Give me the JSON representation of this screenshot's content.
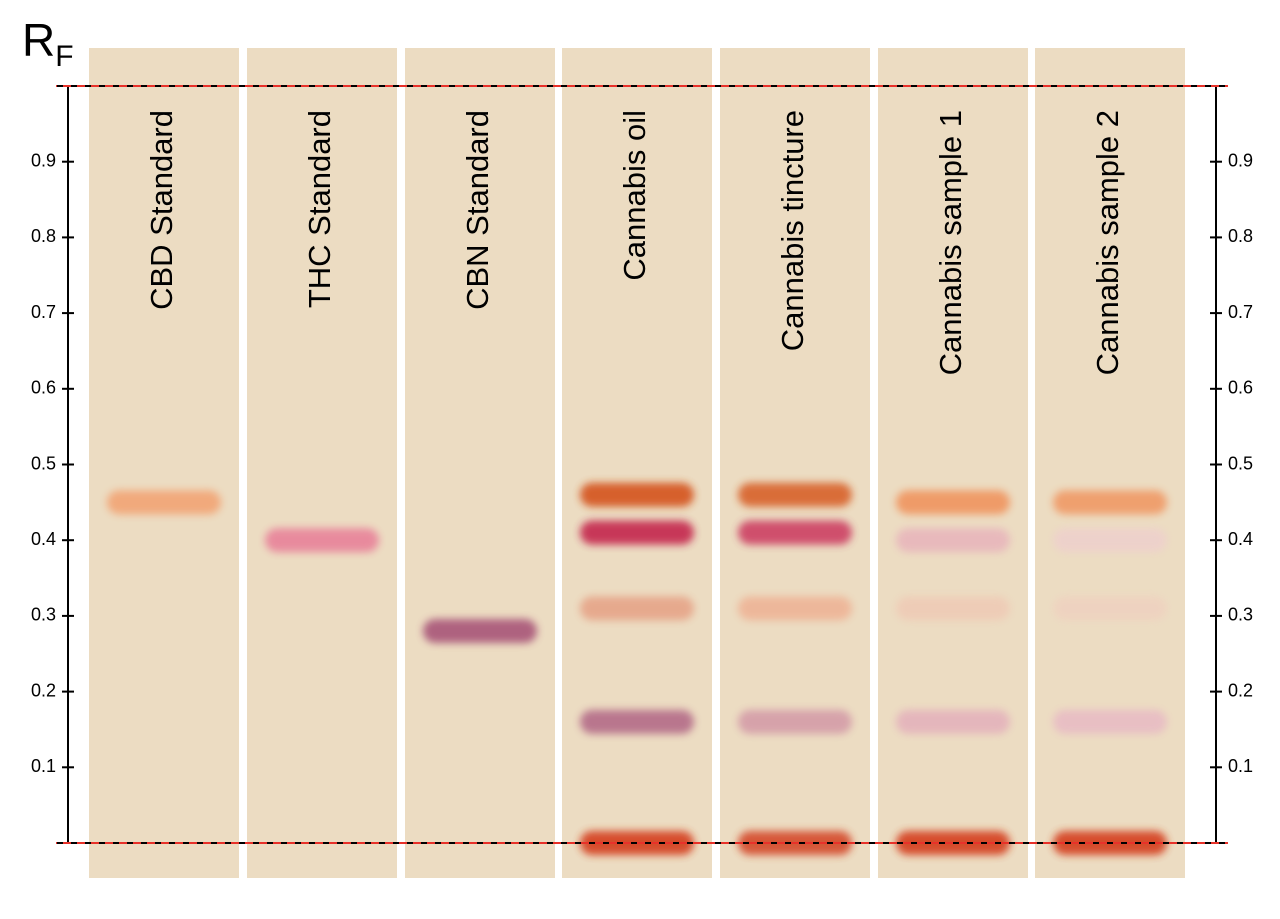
{
  "chart_data": {
    "type": "tlc",
    "y_label": {
      "main": "R",
      "sub": "F"
    },
    "ylim": [
      0,
      1
    ],
    "yticks": [
      0.1,
      0.2,
      0.3,
      0.4,
      0.5,
      0.6,
      0.7,
      0.8,
      0.9
    ],
    "plate_color": "#ecdcc2",
    "lanes": [
      {
        "name": "CBD Standard",
        "bands": [
          {
            "rf": 0.45,
            "color": "#f2a474"
          }
        ]
      },
      {
        "name": "THC Standard",
        "bands": [
          {
            "rf": 0.4,
            "color": "#e8829a"
          }
        ]
      },
      {
        "name": "CBN Standard",
        "bands": [
          {
            "rf": 0.28,
            "color": "#a85478"
          }
        ]
      },
      {
        "name": "Cannabis oil",
        "bands": [
          {
            "rf": 0.46,
            "color": "#d4521c"
          },
          {
            "rf": 0.41,
            "color": "#c4264e"
          },
          {
            "rf": 0.31,
            "color": "#e6a488"
          },
          {
            "rf": 0.16,
            "color": "#b46c88"
          },
          {
            "rf": 0,
            "color": "#d43c1c"
          }
        ]
      },
      {
        "name": "Cannabis tincture",
        "bands": [
          {
            "rf": 0.46,
            "color": "#d8622a"
          },
          {
            "rf": 0.41,
            "color": "#cc4064"
          },
          {
            "rf": 0.31,
            "color": "#eeb496"
          },
          {
            "rf": 0.16,
            "color": "#d49ca8"
          },
          {
            "rf": 0,
            "color": "#d44a2a"
          }
        ]
      },
      {
        "name": "Cannabis sample 1",
        "bands": [
          {
            "rf": 0.45,
            "color": "#f0945e"
          },
          {
            "rf": 0.4,
            "color": "#e8b6bc"
          },
          {
            "rf": 0.31,
            "color": "#efcbb6"
          },
          {
            "rf": 0.16,
            "color": "#e4b2bc"
          },
          {
            "rf": 0,
            "color": "#d43c1c"
          }
        ]
      },
      {
        "name": "Cannabis sample 2",
        "bands": [
          {
            "rf": 0.45,
            "color": "#f09a66"
          },
          {
            "rf": 0.4,
            "color": "#eed0cc"
          },
          {
            "rf": 0.31,
            "color": "#efd2c0"
          },
          {
            "rf": 0.16,
            "color": "#e8bcc4"
          },
          {
            "rf": 0,
            "color": "#d43c1c"
          }
        ]
      }
    ]
  }
}
